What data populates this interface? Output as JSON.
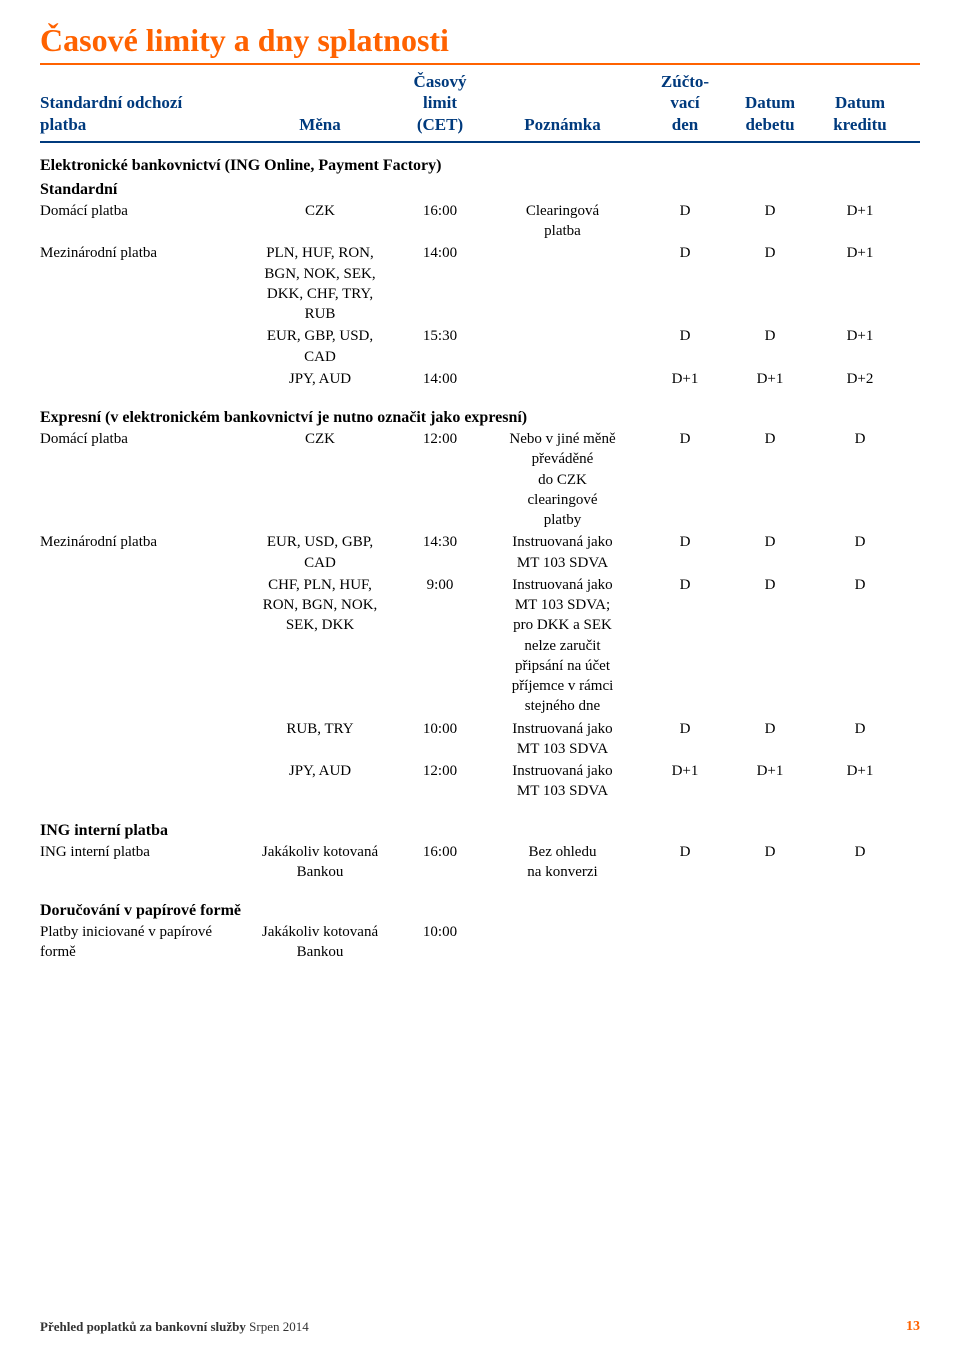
{
  "title": "Časové limity a dny splatnosti",
  "header": {
    "type": "Standardní odchozí\nplatba",
    "curr": "Měna",
    "time": "Časový\nlimit\n(CET)",
    "note": "Poznámka",
    "zd": "Zúčto-\nvací\nden",
    "dd": "Datum\ndebetu",
    "dk": "Datum\nkreditu"
  },
  "sections": [
    {
      "heading": "Elektronické bankovnictví (ING Online, Payment Factory)",
      "subheading": "Standardní",
      "rows": [
        {
          "type": "Domácí platba",
          "curr": "CZK",
          "time": "16:00",
          "note": "Clearingová\nplatba",
          "zd": "D",
          "dd": "D",
          "dk": "D+1"
        },
        {
          "type": "Mezinárodní platba",
          "curr": "PLN, HUF, RON,\nBGN, NOK, SEK,\nDKK, CHF, TRY,\nRUB",
          "time": "14:00",
          "note": "",
          "zd": "D",
          "dd": "D",
          "dk": "D+1"
        },
        {
          "type": "",
          "curr": "EUR, GBP, USD,\nCAD",
          "time": "15:30",
          "note": "",
          "zd": "D",
          "dd": "D",
          "dk": "D+1"
        },
        {
          "type": "",
          "curr": "JPY, AUD",
          "time": "14:00",
          "note": "",
          "zd": "D+1",
          "dd": "D+1",
          "dk": "D+2"
        }
      ]
    },
    {
      "heading": "Expresní (v elektronickém bankovnictví je nutno označit jako expresní)",
      "rows": [
        {
          "type": "Domácí platba",
          "curr": "CZK",
          "time": "12:00",
          "note": "Nebo v jiné měně\npřeváděné\ndo CZK\nclearingové\nplatby",
          "zd": "D",
          "dd": "D",
          "dk": "D"
        },
        {
          "type": "Mezinárodní platba",
          "curr": "EUR, USD, GBP,\nCAD",
          "time": "14:30",
          "note": "Instruovaná jako\nMT 103 SDVA",
          "zd": "D",
          "dd": "D",
          "dk": "D"
        },
        {
          "type": "",
          "curr": "CHF, PLN, HUF,\nRON, BGN, NOK,\nSEK, DKK",
          "time": "9:00",
          "note": "Instruovaná jako\nMT 103 SDVA;\npro DKK a SEK\nnelze zaručit\npřipsání na účet\npříjemce v rámci\nstejného dne",
          "zd": "D",
          "dd": "D",
          "dk": "D"
        },
        {
          "type": "",
          "curr": "RUB, TRY",
          "time": "10:00",
          "note": "Instruovaná jako\nMT 103 SDVA",
          "zd": "D",
          "dd": "D",
          "dk": "D"
        },
        {
          "type": "",
          "curr": "JPY, AUD",
          "time": "12:00",
          "note": "Instruovaná jako\nMT 103 SDVA",
          "zd": "D+1",
          "dd": "D+1",
          "dk": "D+1"
        }
      ]
    },
    {
      "heading": "ING interní platba",
      "rows": [
        {
          "type": "ING interní platba",
          "curr": "Jakákoliv kotovaná\nBankou",
          "time": "16:00",
          "note": "Bez ohledu\nna konverzi",
          "zd": "D",
          "dd": "D",
          "dk": "D"
        }
      ]
    },
    {
      "heading": "Doručování v papírové formě",
      "rows": [
        {
          "type": "Platby iniciované v papírové\nformě",
          "curr": "Jakákoliv kotovaná\nBankou",
          "time": "10:00",
          "note": "",
          "zd": "",
          "dd": "",
          "dk": ""
        }
      ]
    }
  ],
  "footer": {
    "text_bold": "Přehled poplatků za bankovní služby",
    "text_plain": " Srpen 2014",
    "page": "13"
  },
  "colors": {
    "accent": "#ff6200",
    "header_blue": "#003a7d",
    "text": "#000000",
    "background": "#ffffff"
  }
}
